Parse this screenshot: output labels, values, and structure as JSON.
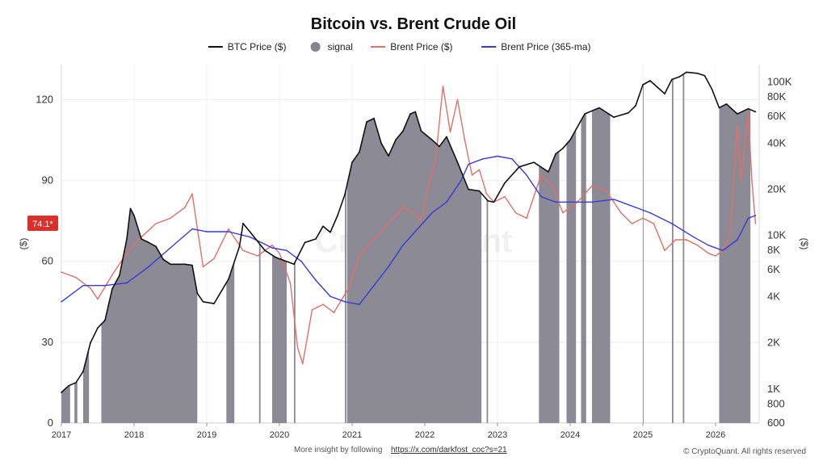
{
  "chart_data": {
    "type": "line",
    "title": "Bitcoin vs. Brent Crude Oil",
    "watermark": "CryptoQuant",
    "left_axis": {
      "label": "($)",
      "range": [
        0,
        133
      ],
      "ticks": [
        0,
        30,
        60,
        90,
        120
      ]
    },
    "right_axis": {
      "label": "($)",
      "scale": "log",
      "range": [
        600,
        130000
      ],
      "ticks": [
        600,
        800,
        1000,
        2000,
        4000,
        6000,
        8000,
        10000,
        20000,
        40000,
        60000,
        80000,
        100000
      ],
      "tick_labels": [
        "600",
        "800",
        "1K",
        "2K",
        "4K",
        "6K",
        "8K",
        "10K",
        "20K",
        "40K",
        "60K",
        "80K",
        "100K"
      ]
    },
    "x_axis": {
      "range": [
        2017.0,
        2026.6
      ],
      "ticks": [
        2017,
        2018,
        2019,
        2020,
        2021,
        2022,
        2023,
        2024,
        2025,
        2026
      ]
    },
    "current_value_label": "74.1*",
    "grid": true,
    "legend_position": "top-center",
    "colors": {
      "btc": "#111111",
      "signal": "#86848f",
      "brent": "#e0706a",
      "ma": "#3a3ad4",
      "badge": "#d9302c"
    },
    "legend": [
      {
        "key": "btc",
        "label": "BTC Price ($)",
        "style": "line"
      },
      {
        "key": "signal",
        "label": "signal",
        "style": "dot"
      },
      {
        "key": "brent",
        "label": "Brent Price ($)",
        "style": "line"
      },
      {
        "key": "ma",
        "label": "Brent Price (365-ma)",
        "style": "line"
      }
    ],
    "series": [
      {
        "name": "BTC Price ($)",
        "axis": "right",
        "x": [
          2017.0,
          2017.1,
          2017.2,
          2017.3,
          2017.4,
          2017.5,
          2017.6,
          2017.7,
          2017.8,
          2017.9,
          2017.95,
          2018.0,
          2018.1,
          2018.2,
          2018.3,
          2018.4,
          2018.5,
          2018.6,
          2018.7,
          2018.8,
          2018.87,
          2018.95,
          2019.1,
          2019.3,
          2019.45,
          2019.5,
          2019.6,
          2019.8,
          2019.95,
          2020.2,
          2020.35,
          2020.5,
          2020.6,
          2020.7,
          2020.8,
          2020.9,
          2021.0,
          2021.1,
          2021.2,
          2021.3,
          2021.4,
          2021.5,
          2021.6,
          2021.7,
          2021.8,
          2021.87,
          2021.95,
          2022.1,
          2022.2,
          2022.3,
          2022.45,
          2022.6,
          2022.75,
          2022.87,
          2022.95,
          2023.1,
          2023.3,
          2023.5,
          2023.7,
          2023.8,
          2023.9,
          2024.0,
          2024.2,
          2024.4,
          2024.6,
          2024.8,
          2024.9,
          2025.0,
          2025.1,
          2025.3,
          2025.4,
          2025.5,
          2025.6,
          2025.75,
          2025.85,
          2025.95,
          2026.05,
          2026.15,
          2026.3,
          2026.45,
          2026.55
        ],
        "values": [
          950,
          1050,
          1100,
          1300,
          2000,
          2500,
          2800,
          4500,
          5500,
          9500,
          15000,
          13500,
          9500,
          9000,
          8500,
          7000,
          6500,
          6500,
          6500,
          6400,
          4200,
          3700,
          3600,
          5200,
          8500,
          12000,
          10500,
          8000,
          7200,
          6500,
          9000,
          9500,
          11500,
          10500,
          13500,
          18500,
          30000,
          35000,
          55000,
          58000,
          40000,
          33000,
          42000,
          48000,
          62000,
          64000,
          48000,
          42000,
          38000,
          44000,
          30000,
          20000,
          19500,
          16800,
          16500,
          22000,
          28000,
          30000,
          26000,
          34000,
          37000,
          42000,
          62000,
          68000,
          59000,
          63000,
          70000,
          96000,
          102000,
          84000,
          104000,
          108000,
          116000,
          114000,
          110000,
          90000,
          68000,
          72000,
          62000,
          67000,
          64000
        ]
      },
      {
        "name": "Brent Price ($)",
        "axis": "left",
        "x": [
          2017.0,
          2017.2,
          2017.4,
          2017.5,
          2017.7,
          2017.9,
          2018.1,
          2018.3,
          2018.5,
          2018.7,
          2018.8,
          2018.95,
          2019.1,
          2019.3,
          2019.5,
          2019.7,
          2019.9,
          2020.0,
          2020.15,
          2020.25,
          2020.32,
          2020.45,
          2020.6,
          2020.75,
          2020.95,
          2021.1,
          2021.3,
          2021.5,
          2021.7,
          2021.85,
          2021.95,
          2022.05,
          2022.15,
          2022.25,
          2022.35,
          2022.45,
          2022.55,
          2022.65,
          2022.75,
          2022.85,
          2022.95,
          2023.1,
          2023.25,
          2023.4,
          2023.6,
          2023.75,
          2023.9,
          2024.1,
          2024.3,
          2024.5,
          2024.7,
          2024.85,
          2025.0,
          2025.15,
          2025.3,
          2025.45,
          2025.6,
          2025.75,
          2025.9,
          2026.0,
          2026.1,
          2026.2,
          2026.3,
          2026.35,
          2026.45,
          2026.5,
          2026.55
        ],
        "values": [
          56,
          54,
          50,
          46,
          55,
          63,
          69,
          74,
          76,
          80,
          85,
          58,
          61,
          72,
          64,
          62,
          66,
          63,
          52,
          28,
          22,
          42,
          44,
          41,
          50,
          62,
          68,
          74,
          80,
          78,
          75,
          88,
          98,
          125,
          108,
          120,
          105,
          92,
          94,
          85,
          82,
          84,
          78,
          76,
          92,
          88,
          78,
          82,
          88,
          86,
          78,
          74,
          76,
          74,
          64,
          68,
          68,
          66,
          63,
          62,
          64,
          70,
          110,
          90,
          115,
          90,
          74
        ]
      },
      {
        "name": "Brent Price (365-ma)",
        "axis": "left",
        "x": [
          2017.0,
          2017.3,
          2017.6,
          2017.9,
          2018.2,
          2018.5,
          2018.8,
          2019.0,
          2019.3,
          2019.6,
          2019.9,
          2020.1,
          2020.3,
          2020.5,
          2020.7,
          2020.9,
          2021.1,
          2021.3,
          2021.5,
          2021.7,
          2021.9,
          2022.1,
          2022.3,
          2022.5,
          2022.6,
          2022.8,
          2023.0,
          2023.2,
          2023.4,
          2023.6,
          2023.8,
          2024.0,
          2024.3,
          2024.6,
          2024.9,
          2025.1,
          2025.4,
          2025.7,
          2025.9,
          2026.1,
          2026.3,
          2026.45,
          2026.55
        ],
        "values": [
          45,
          51,
          51,
          52,
          58,
          65,
          72,
          71,
          71,
          69,
          65,
          64,
          60,
          53,
          47,
          45,
          44,
          51,
          58,
          66,
          72,
          78,
          82,
          90,
          96,
          98,
          99,
          98,
          92,
          84,
          82,
          82,
          82,
          83,
          80,
          78,
          74,
          69,
          66,
          64,
          68,
          76,
          77
        ]
      }
    ],
    "signal_periods": [
      [
        2017.0,
        2017.12
      ],
      [
        2017.18,
        2017.22
      ],
      [
        2017.3,
        2017.38
      ],
      [
        2017.55,
        2018.87
      ],
      [
        2019.27,
        2019.38
      ],
      [
        2019.72,
        2019.74
      ],
      [
        2019.9,
        2020.1
      ],
      [
        2020.2,
        2020.22
      ],
      [
        2020.9,
        2020.92
      ],
      [
        2020.93,
        2022.78
      ],
      [
        2022.85,
        2022.87
      ],
      [
        2023.57,
        2023.85
      ],
      [
        2023.95,
        2024.08
      ],
      [
        2024.15,
        2024.22
      ],
      [
        2024.3,
        2024.55
      ],
      [
        2025.0,
        2025.01
      ],
      [
        2025.4,
        2025.42
      ],
      [
        2025.55,
        2025.57
      ],
      [
        2026.05,
        2026.48
      ]
    ]
  },
  "footer": {
    "insight_text": "More insight by following",
    "link_text": "https://x.com/darkfost_coc?s=21",
    "copyright": "© CryptoQuant. All rights reserved"
  }
}
